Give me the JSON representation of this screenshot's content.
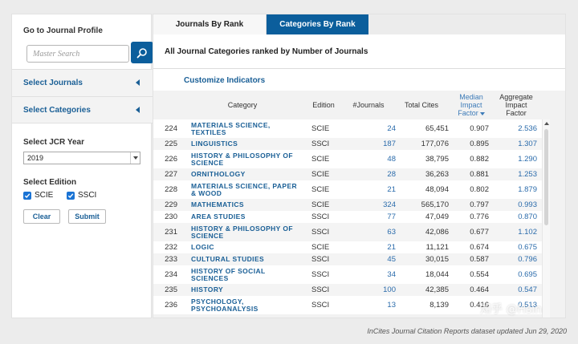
{
  "sidebar": {
    "go_to_title": "Go to Journal Profile",
    "search_placeholder": "Master Search",
    "select_journals": "Select Journals",
    "select_categories": "Select Categories",
    "jcr_year_label": "Select JCR Year",
    "jcr_year_value": "2019",
    "edition_label": "Select Edition",
    "edition_scie": "SCIE",
    "edition_ssci": "SSCI",
    "clear_label": "Clear",
    "submit_label": "Submit"
  },
  "tabs": {
    "journals_by_rank": "Journals By Rank",
    "categories_by_rank": "Categories By Rank"
  },
  "main": {
    "heading": "All Journal Categories ranked by Number of Journals",
    "customize": "Customize Indicators"
  },
  "table": {
    "headers": {
      "category": "Category",
      "edition": "Edition",
      "journals": "#Journals",
      "total_cites": "Total Cites",
      "median_line1": "Median",
      "median_line2": "Impact",
      "median_line3": "Factor",
      "aggregate_line1": "Aggregate",
      "aggregate_line2": "Impact",
      "aggregate_line3": "Factor"
    },
    "rows": [
      {
        "rank": "224",
        "category": "MATERIALS SCIENCE, TEXTILES",
        "edition": "SCIE",
        "journals": "24",
        "total_cites": "65,451",
        "median_if": "0.907",
        "aggregate_if": "2.536"
      },
      {
        "rank": "225",
        "category": "LINGUISTICS",
        "edition": "SSCI",
        "journals": "187",
        "total_cites": "177,076",
        "median_if": "0.895",
        "aggregate_if": "1.307"
      },
      {
        "rank": "226",
        "category": "HISTORY & PHILOSOPHY OF SCIENCE",
        "edition": "SCIE",
        "journals": "48",
        "total_cites": "38,795",
        "median_if": "0.882",
        "aggregate_if": "1.290"
      },
      {
        "rank": "227",
        "category": "ORNITHOLOGY",
        "edition": "SCIE",
        "journals": "28",
        "total_cites": "36,263",
        "median_if": "0.881",
        "aggregate_if": "1.253"
      },
      {
        "rank": "228",
        "category": "MATERIALS SCIENCE, PAPER & WOOD",
        "edition": "SCIE",
        "journals": "21",
        "total_cites": "48,094",
        "median_if": "0.802",
        "aggregate_if": "1.879"
      },
      {
        "rank": "229",
        "category": "MATHEMATICS",
        "edition": "SCIE",
        "journals": "324",
        "total_cites": "565,170",
        "median_if": "0.797",
        "aggregate_if": "0.993"
      },
      {
        "rank": "230",
        "category": "AREA STUDIES",
        "edition": "SSCI",
        "journals": "77",
        "total_cites": "47,049",
        "median_if": "0.776",
        "aggregate_if": "0.870"
      },
      {
        "rank": "231",
        "category": "HISTORY & PHILOSOPHY OF SCIENCE",
        "edition": "SSCI",
        "journals": "63",
        "total_cites": "42,086",
        "median_if": "0.677",
        "aggregate_if": "1.102"
      },
      {
        "rank": "232",
        "category": "LOGIC",
        "edition": "SCIE",
        "journals": "21",
        "total_cites": "11,121",
        "median_if": "0.674",
        "aggregate_if": "0.675"
      },
      {
        "rank": "233",
        "category": "CULTURAL STUDIES",
        "edition": "SSCI",
        "journals": "45",
        "total_cites": "30,015",
        "median_if": "0.587",
        "aggregate_if": "0.796"
      },
      {
        "rank": "234",
        "category": "HISTORY OF SOCIAL SCIENCES",
        "edition": "SSCI",
        "journals": "34",
        "total_cites": "18,044",
        "median_if": "0.554",
        "aggregate_if": "0.695"
      },
      {
        "rank": "235",
        "category": "HISTORY",
        "edition": "SSCI",
        "journals": "100",
        "total_cites": "42,385",
        "median_if": "0.464",
        "aggregate_if": "0.547"
      },
      {
        "rank": "236",
        "category": "PSYCHOLOGY, PSYCHOANALYSIS",
        "edition": "SSCI",
        "journals": "13",
        "total_cites": "8,139",
        "median_if": "0.416",
        "aggregate_if": "0.513"
      }
    ]
  },
  "footer": "InCites Journal Citation Reports dataset updated Jun 29, 2020",
  "watermark": "知乎 @Hsin",
  "colors": {
    "accent_blue": "#0b5e9c",
    "link_blue": "#1a5f96"
  }
}
